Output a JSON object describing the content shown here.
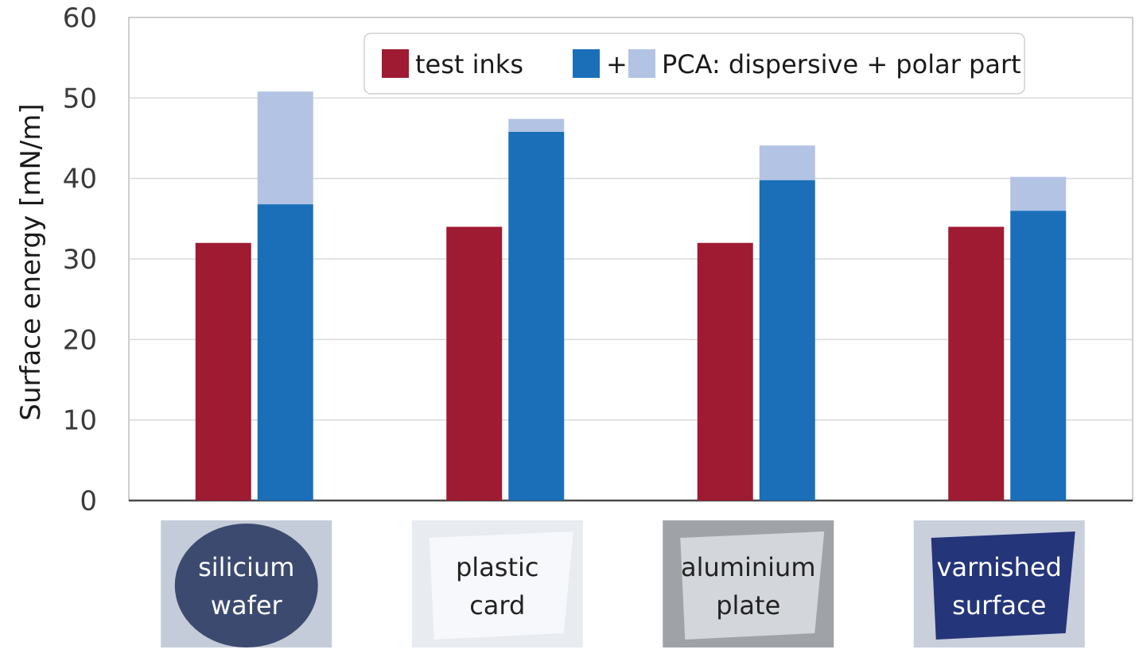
{
  "chart_data": {
    "type": "bar",
    "ylabel": "Surface energy [mN/m]",
    "ylim": [
      0,
      60
    ],
    "yticks": [
      0,
      10,
      20,
      30,
      40,
      50,
      60
    ],
    "grid": true,
    "legend": {
      "placement": "top-center",
      "entries": [
        {
          "label": "test inks",
          "color": "#9e1b32"
        },
        {
          "label": "+",
          "color": "#1a6fb8"
        },
        {
          "label": "PCA:  dispersive + polar part",
          "color": "#b3c3e4"
        }
      ]
    },
    "categories": [
      "silicium wafer",
      "plastic card",
      "aluminium plate",
      "varnished surface"
    ],
    "category_labels": [
      [
        "silicium",
        "wafer"
      ],
      [
        "plastic",
        "card"
      ],
      [
        "aluminium",
        "plate"
      ],
      [
        "varnished",
        "surface"
      ]
    ],
    "series": [
      {
        "name": "test inks",
        "color": "#9e1b32",
        "values": [
          32,
          34,
          32,
          34
        ]
      },
      {
        "name": "dispersive part",
        "color": "#1a6fb8",
        "values": [
          36.8,
          45.8,
          39.8,
          36.0
        ],
        "stack": "PCA"
      },
      {
        "name": "polar part",
        "color": "#b3c3e4",
        "values": [
          14.0,
          1.6,
          4.3,
          4.2
        ],
        "stack": "PCA"
      }
    ]
  }
}
